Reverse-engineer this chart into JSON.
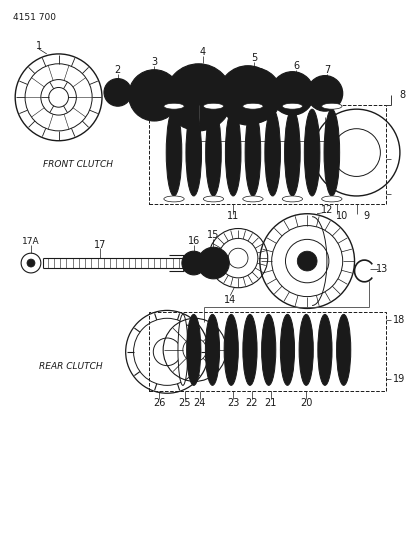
{
  "title": "4151 700",
  "front_clutch_label": "FRONT CLUTCH",
  "rear_clutch_label": "REAR CLUTCH",
  "bg_color": "#ffffff",
  "line_color": "#1a1a1a",
  "figsize": [
    4.08,
    5.33
  ],
  "dpi": 100
}
